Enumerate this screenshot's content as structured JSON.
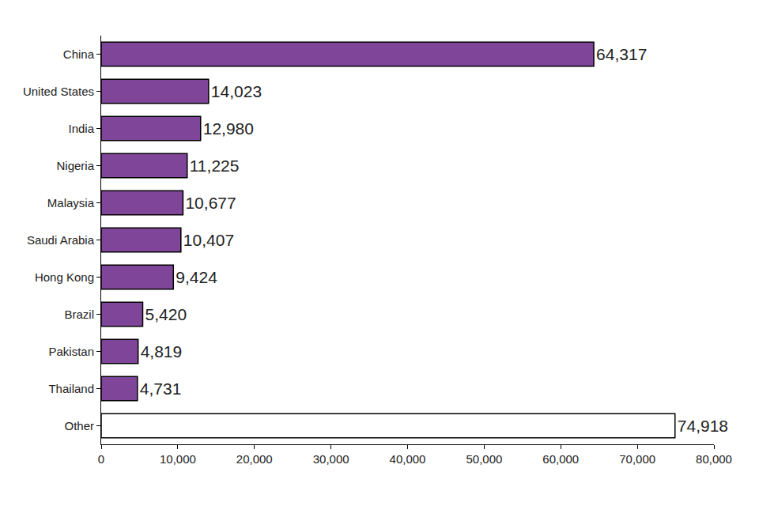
{
  "chart_data": {
    "type": "bar",
    "orientation": "horizontal",
    "categories": [
      "China",
      "United States",
      "India",
      "Nigeria",
      "Malaysia",
      "Saudi Arabia",
      "Hong Kong",
      "Brazil",
      "Pakistan",
      "Thailand",
      "Other"
    ],
    "values": [
      64317,
      14023,
      12980,
      11225,
      10677,
      10407,
      9424,
      5420,
      4819,
      4731,
      74918
    ],
    "value_labels": [
      "64,317",
      "14,023",
      "12,980",
      "11,225",
      "10,677",
      "10,407",
      "9,424",
      "5,420",
      "4,819",
      "4,731",
      "74,918"
    ],
    "colors": [
      "#7f4599",
      "#7f4599",
      "#7f4599",
      "#7f4599",
      "#7f4599",
      "#7f4599",
      "#7f4599",
      "#7f4599",
      "#7f4599",
      "#7f4599",
      "#ffffff"
    ],
    "data_labels": true,
    "xlim": [
      0,
      80000
    ],
    "xticks": [
      0,
      {
        "value": 10000,
        "label": "10,000"
      },
      {
        "value": 20000,
        "label": "20,000"
      },
      {
        "value": 30000,
        "label": "30,000"
      },
      {
        "value": 40000,
        "label": "40,000"
      },
      {
        "value": 50000,
        "label": "50,000"
      },
      {
        "value": 60000,
        "label": "60,000"
      },
      {
        "value": 70000,
        "label": "70,000"
      },
      {
        "value": 80000,
        "label": "80,000"
      }
    ],
    "grid": false
  }
}
